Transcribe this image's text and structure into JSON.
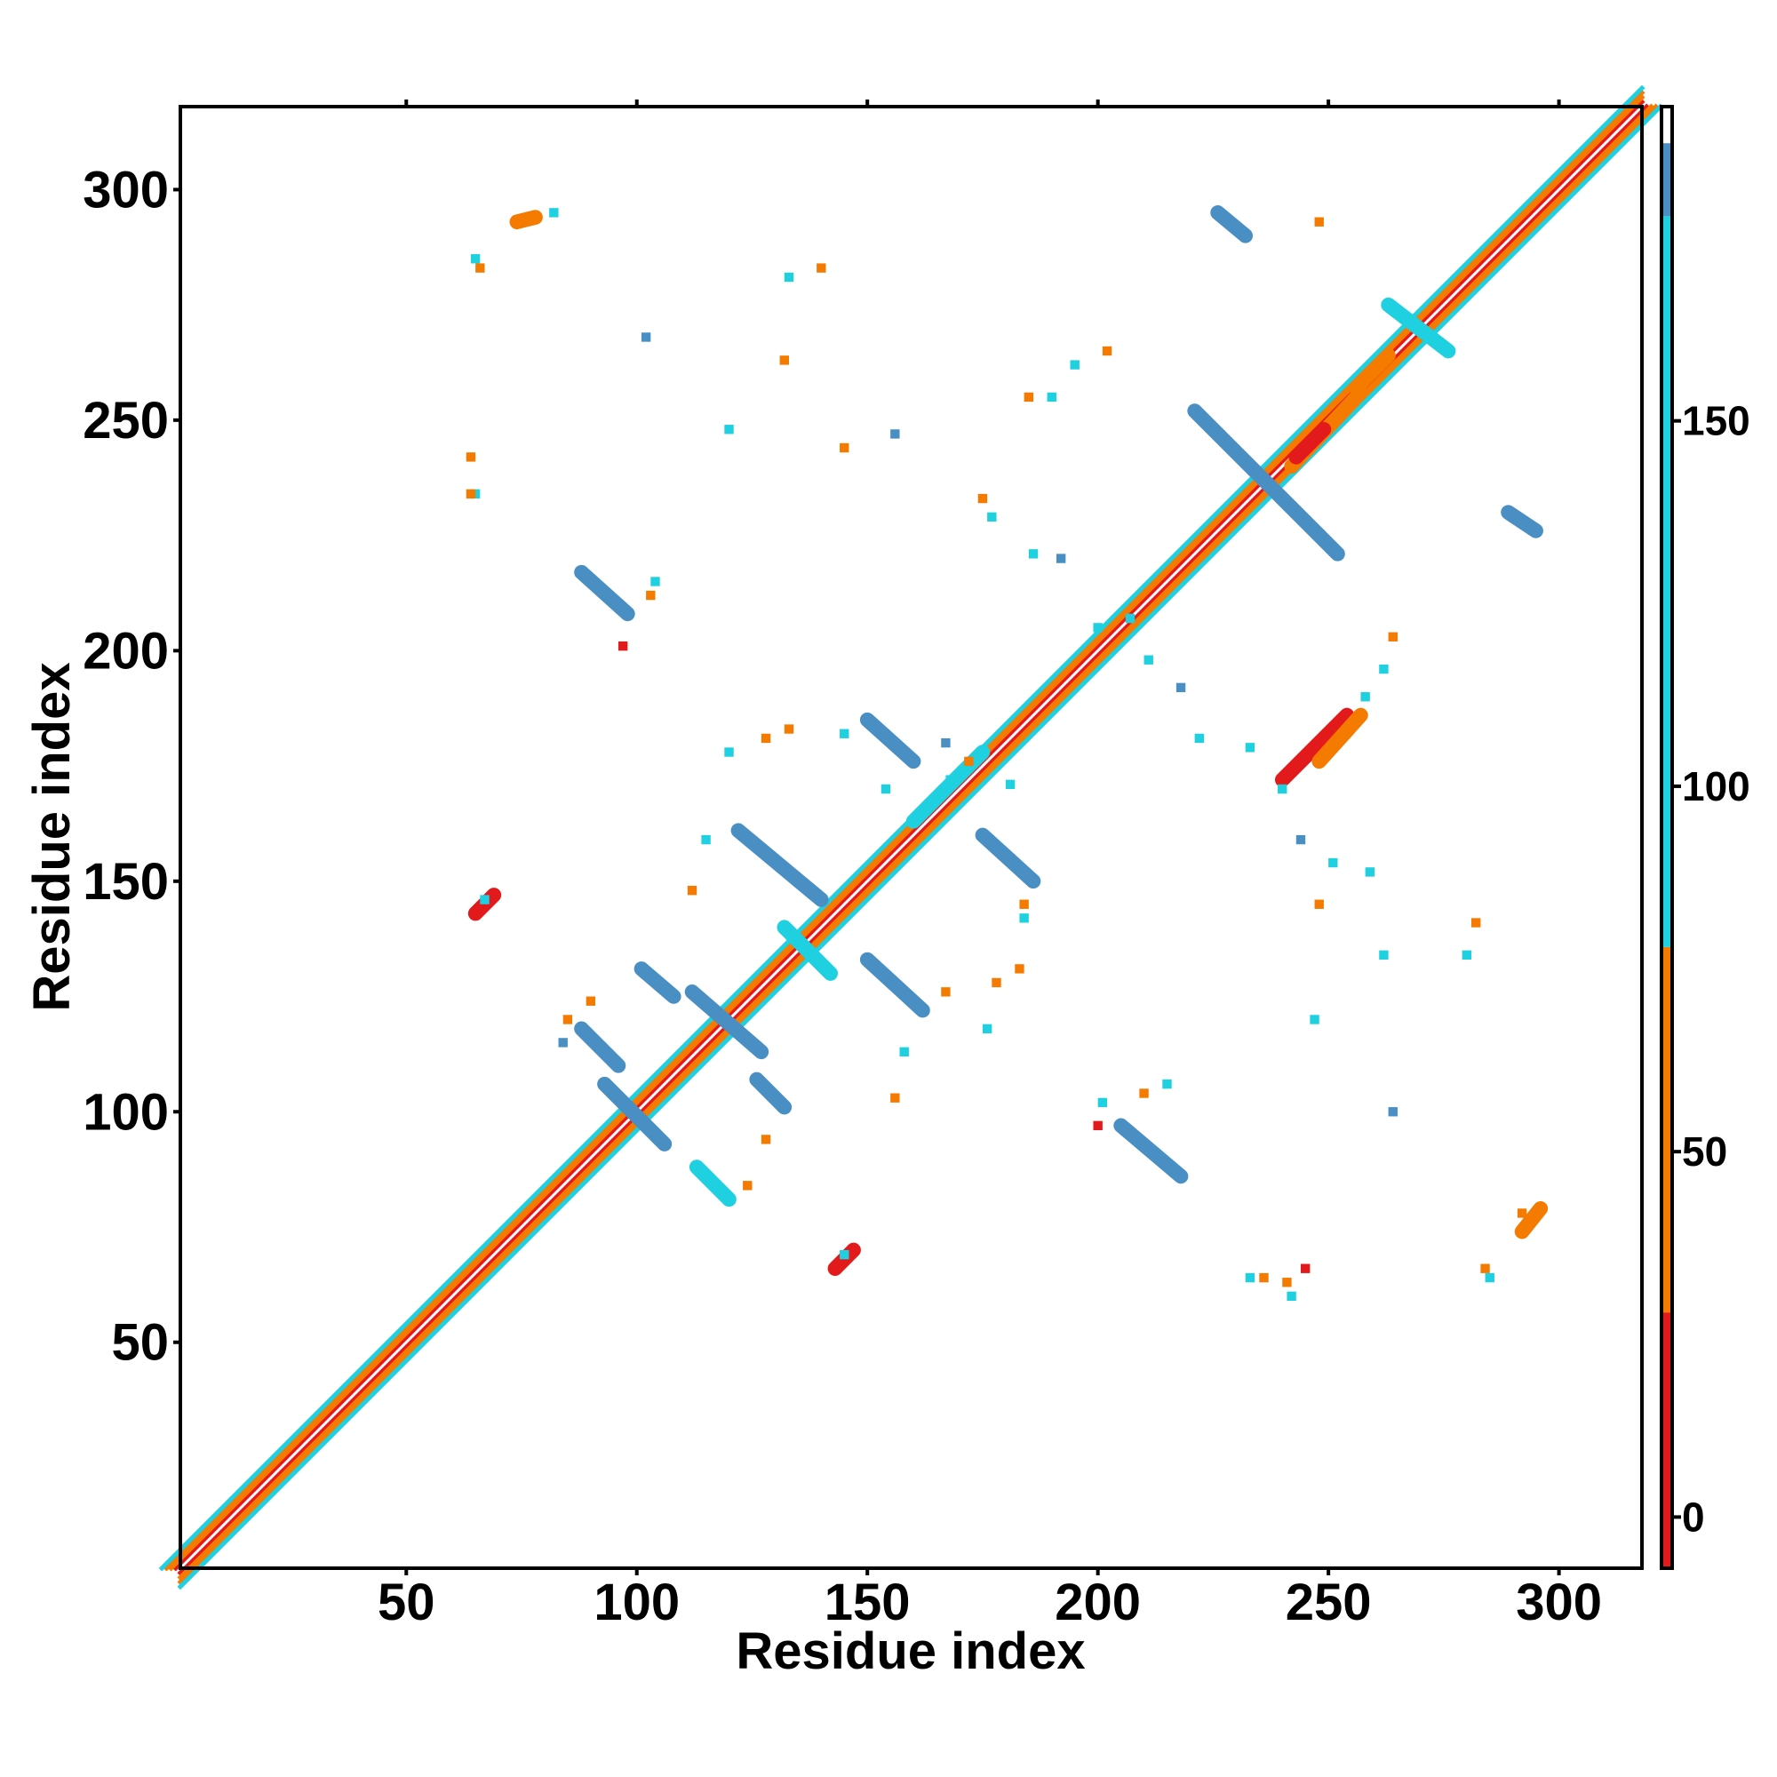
{
  "chart_data": {
    "type": "heatmap",
    "title": "",
    "xlabel": "Residue index",
    "ylabel": "Residue index",
    "xlim": [
      1,
      318
    ],
    "ylim": [
      1,
      318
    ],
    "xticks": [
      50,
      100,
      150,
      200,
      250,
      300
    ],
    "yticks": [
      50,
      100,
      150,
      200,
      250,
      300
    ],
    "grid": false,
    "colorbar": {
      "ticks": [
        0,
        50,
        100,
        150
      ],
      "range": [
        -7,
        193
      ],
      "bands": [
        {
          "from": -7,
          "to": 28,
          "color": "#e31a1c"
        },
        {
          "from": 28,
          "to": 78,
          "color": "#f57a00"
        },
        {
          "from": 78,
          "to": 178,
          "color": "#1fd0e0"
        },
        {
          "from": 178,
          "to": 188,
          "color": "#4a8fc4"
        },
        {
          "from": 188,
          "to": 193,
          "color": "#ffffff"
        }
      ]
    },
    "diagonal": {
      "from": 1,
      "to": 318
    },
    "contact_bands": [
      {
        "x1": 88,
        "y1": 118,
        "x2": 96,
        "y2": 110,
        "color": "#4a8fc4"
      },
      {
        "x1": 93,
        "y1": 106,
        "x2": 106,
        "y2": 93,
        "color": "#4a8fc4"
      },
      {
        "x1": 101,
        "y1": 131,
        "x2": 108,
        "y2": 125,
        "color": "#4a8fc4"
      },
      {
        "x1": 112,
        "y1": 126,
        "x2": 127,
        "y2": 113,
        "color": "#4a8fc4"
      },
      {
        "x1": 126,
        "y1": 107,
        "x2": 132,
        "y2": 101,
        "color": "#4a8fc4"
      },
      {
        "x1": 113,
        "y1": 88,
        "x2": 120,
        "y2": 81,
        "color": "#1fd0e0"
      },
      {
        "x1": 122,
        "y1": 161,
        "x2": 140,
        "y2": 146,
        "color": "#4a8fc4"
      },
      {
        "x1": 132,
        "y1": 140,
        "x2": 142,
        "y2": 130,
        "color": "#1fd0e0"
      },
      {
        "x1": 150,
        "y1": 133,
        "x2": 162,
        "y2": 122,
        "color": "#4a8fc4"
      },
      {
        "x1": 150,
        "y1": 185,
        "x2": 160,
        "y2": 176,
        "color": "#4a8fc4"
      },
      {
        "x1": 175,
        "y1": 160,
        "x2": 186,
        "y2": 150,
        "color": "#4a8fc4"
      },
      {
        "x1": 88,
        "y1": 217,
        "x2": 98,
        "y2": 208,
        "color": "#4a8fc4"
      },
      {
        "x1": 205,
        "y1": 97,
        "x2": 218,
        "y2": 86,
        "color": "#4a8fc4"
      },
      {
        "x1": 221,
        "y1": 252,
        "x2": 252,
        "y2": 221,
        "color": "#4a8fc4"
      },
      {
        "x1": 226,
        "y1": 295,
        "x2": 232,
        "y2": 290,
        "color": "#4a8fc4"
      },
      {
        "x1": 242,
        "y1": 240,
        "x2": 257,
        "y2": 256,
        "color": "#f57a00"
      },
      {
        "x1": 243,
        "y1": 242,
        "x2": 249,
        "y2": 248,
        "color": "#e31a1c"
      },
      {
        "x1": 240,
        "y1": 172,
        "x2": 254,
        "y2": 186,
        "color": "#e31a1c"
      },
      {
        "x1": 248,
        "y1": 176,
        "x2": 257,
        "y2": 186,
        "color": "#f57a00"
      },
      {
        "x1": 256,
        "y1": 257,
        "x2": 263,
        "y2": 264,
        "color": "#f57a00"
      },
      {
        "x1": 160,
        "y1": 163,
        "x2": 175,
        "y2": 178,
        "color": "#1fd0e0"
      },
      {
        "x1": 289,
        "y1": 230,
        "x2": 295,
        "y2": 226,
        "color": "#4a8fc4"
      },
      {
        "x1": 263,
        "y1": 275,
        "x2": 276,
        "y2": 265,
        "color": "#1fd0e0"
      },
      {
        "x1": 74,
        "y1": 293,
        "x2": 78,
        "y2": 294,
        "color": "#f57a00"
      },
      {
        "x1": 65,
        "y1": 143,
        "x2": 69,
        "y2": 147,
        "color": "#e31a1c"
      },
      {
        "x1": 143,
        "y1": 66,
        "x2": 147,
        "y2": 70,
        "color": "#e31a1c"
      },
      {
        "x1": 292,
        "y1": 74,
        "x2": 296,
        "y2": 79,
        "color": "#f57a00"
      }
    ],
    "contact_blobs": [
      {
        "x": 75,
        "y": 293,
        "color": "#f57a00"
      },
      {
        "x": 65,
        "y": 285,
        "color": "#1fd0e0"
      },
      {
        "x": 66,
        "y": 283,
        "color": "#f57a00"
      },
      {
        "x": 133,
        "y": 281,
        "color": "#1fd0e0"
      },
      {
        "x": 140,
        "y": 283,
        "color": "#f57a00"
      },
      {
        "x": 102,
        "y": 268,
        "color": "#4a8fc4"
      },
      {
        "x": 64,
        "y": 242,
        "color": "#f57a00"
      },
      {
        "x": 65,
        "y": 234,
        "color": "#1fd0e0"
      },
      {
        "x": 64,
        "y": 234,
        "color": "#f57a00"
      },
      {
        "x": 185,
        "y": 255,
        "color": "#f57a00"
      },
      {
        "x": 190,
        "y": 255,
        "color": "#1fd0e0"
      },
      {
        "x": 195,
        "y": 262,
        "color": "#1fd0e0"
      },
      {
        "x": 202,
        "y": 265,
        "color": "#f57a00"
      },
      {
        "x": 248,
        "y": 293,
        "color": "#f57a00"
      },
      {
        "x": 97,
        "y": 201,
        "color": "#e31a1c"
      },
      {
        "x": 103,
        "y": 212,
        "color": "#f57a00"
      },
      {
        "x": 104,
        "y": 215,
        "color": "#1fd0e0"
      },
      {
        "x": 120,
        "y": 178,
        "color": "#1fd0e0"
      },
      {
        "x": 128,
        "y": 181,
        "color": "#f57a00"
      },
      {
        "x": 133,
        "y": 183,
        "color": "#f57a00"
      },
      {
        "x": 145,
        "y": 182,
        "color": "#1fd0e0"
      },
      {
        "x": 168,
        "y": 172,
        "color": "#1fd0e0"
      },
      {
        "x": 172,
        "y": 176,
        "color": "#f57a00"
      },
      {
        "x": 200,
        "y": 205,
        "color": "#1fd0e0"
      },
      {
        "x": 207,
        "y": 207,
        "color": "#1fd0e0"
      },
      {
        "x": 211,
        "y": 198,
        "color": "#1fd0e0"
      },
      {
        "x": 218,
        "y": 192,
        "color": "#4a8fc4"
      },
      {
        "x": 192,
        "y": 220,
        "color": "#4a8fc4"
      },
      {
        "x": 186,
        "y": 221,
        "color": "#1fd0e0"
      },
      {
        "x": 177,
        "y": 229,
        "color": "#1fd0e0"
      },
      {
        "x": 175,
        "y": 233,
        "color": "#f57a00"
      },
      {
        "x": 156,
        "y": 247,
        "color": "#4a8fc4"
      },
      {
        "x": 145,
        "y": 244,
        "color": "#f57a00"
      },
      {
        "x": 120,
        "y": 248,
        "color": "#1fd0e0"
      },
      {
        "x": 132,
        "y": 263,
        "color": "#f57a00"
      },
      {
        "x": 262,
        "y": 196,
        "color": "#1fd0e0"
      },
      {
        "x": 264,
        "y": 203,
        "color": "#f57a00"
      },
      {
        "x": 258,
        "y": 190,
        "color": "#1fd0e0"
      },
      {
        "x": 240,
        "y": 170,
        "color": "#1fd0e0"
      },
      {
        "x": 222,
        "y": 181,
        "color": "#1fd0e0"
      },
      {
        "x": 233,
        "y": 179,
        "color": "#1fd0e0"
      },
      {
        "x": 244,
        "y": 159,
        "color": "#4a8fc4"
      },
      {
        "x": 251,
        "y": 154,
        "color": "#1fd0e0"
      },
      {
        "x": 259,
        "y": 152,
        "color": "#1fd0e0"
      },
      {
        "x": 248,
        "y": 145,
        "color": "#f57a00"
      },
      {
        "x": 282,
        "y": 141,
        "color": "#f57a00"
      },
      {
        "x": 280,
        "y": 134,
        "color": "#1fd0e0"
      },
      {
        "x": 262,
        "y": 134,
        "color": "#1fd0e0"
      },
      {
        "x": 247,
        "y": 120,
        "color": "#1fd0e0"
      },
      {
        "x": 264,
        "y": 100,
        "color": "#4a8fc4"
      },
      {
        "x": 210,
        "y": 104,
        "color": "#f57a00"
      },
      {
        "x": 215,
        "y": 106,
        "color": "#1fd0e0"
      },
      {
        "x": 201,
        "y": 102,
        "color": "#1fd0e0"
      },
      {
        "x": 200,
        "y": 97,
        "color": "#e31a1c"
      },
      {
        "x": 233,
        "y": 64,
        "color": "#1fd0e0"
      },
      {
        "x": 236,
        "y": 64,
        "color": "#f57a00"
      },
      {
        "x": 241,
        "y": 63,
        "color": "#f57a00"
      },
      {
        "x": 242,
        "y": 60,
        "color": "#1fd0e0"
      },
      {
        "x": 245,
        "y": 66,
        "color": "#e31a1c"
      },
      {
        "x": 284,
        "y": 66,
        "color": "#f57a00"
      },
      {
        "x": 285,
        "y": 64,
        "color": "#1fd0e0"
      },
      {
        "x": 292,
        "y": 78,
        "color": "#f57a00"
      },
      {
        "x": 145,
        "y": 69,
        "color": "#1fd0e0"
      },
      {
        "x": 67,
        "y": 146,
        "color": "#1fd0e0"
      },
      {
        "x": 156,
        "y": 103,
        "color": "#f57a00"
      },
      {
        "x": 158,
        "y": 113,
        "color": "#1fd0e0"
      },
      {
        "x": 178,
        "y": 128,
        "color": "#f57a00"
      },
      {
        "x": 183,
        "y": 131,
        "color": "#f57a00"
      },
      {
        "x": 176,
        "y": 118,
        "color": "#1fd0e0"
      },
      {
        "x": 167,
        "y": 126,
        "color": "#f57a00"
      },
      {
        "x": 128,
        "y": 94,
        "color": "#f57a00"
      },
      {
        "x": 124,
        "y": 84,
        "color": "#f57a00"
      },
      {
        "x": 112,
        "y": 148,
        "color": "#f57a00"
      },
      {
        "x": 115,
        "y": 159,
        "color": "#1fd0e0"
      },
      {
        "x": 184,
        "y": 145,
        "color": "#f57a00"
      },
      {
        "x": 184,
        "y": 142,
        "color": "#1fd0e0"
      },
      {
        "x": 167,
        "y": 180,
        "color": "#4a8fc4"
      },
      {
        "x": 181,
        "y": 171,
        "color": "#1fd0e0"
      },
      {
        "x": 154,
        "y": 170,
        "color": "#1fd0e0"
      },
      {
        "x": 85,
        "y": 120,
        "color": "#f57a00"
      },
      {
        "x": 84,
        "y": 115,
        "color": "#4a8fc4"
      },
      {
        "x": 90,
        "y": 124,
        "color": "#f57a00"
      },
      {
        "x": 82,
        "y": 295,
        "color": "#1fd0e0"
      }
    ]
  }
}
